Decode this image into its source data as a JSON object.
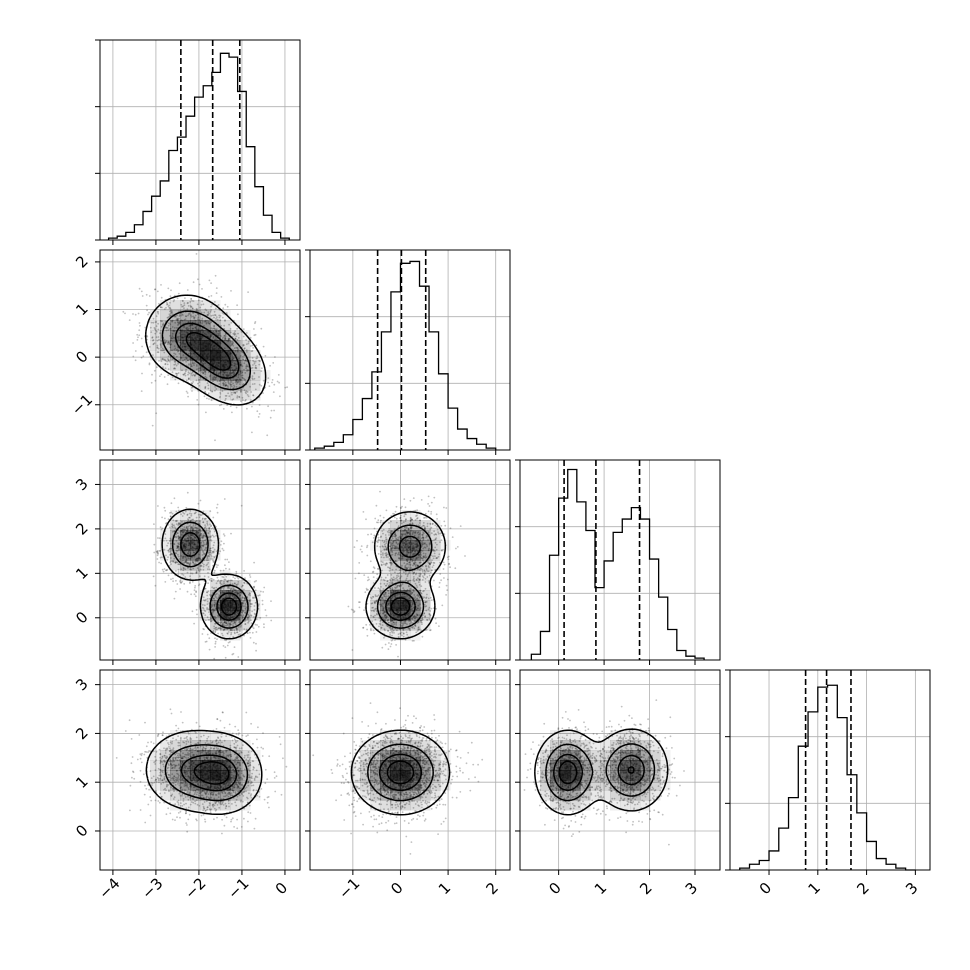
{
  "chart_data": {
    "type": "corner",
    "n_params": 4,
    "colors": {
      "line": "#000000",
      "grid": "#b0b0b0",
      "density": "#000000",
      "background": "#ffffff"
    },
    "grid": true,
    "quantiles": [
      0.16,
      0.5,
      0.84
    ],
    "levels": [
      0.12,
      0.39,
      0.68,
      0.86
    ],
    "params": [
      {
        "xlim": [
          -4.3,
          0.35
        ],
        "ticks": [
          -4,
          -3,
          -2,
          -1,
          0
        ],
        "tick_labels": [
          "−4",
          "−3",
          "−2",
          "−1",
          "0"
        ],
        "hist": {
          "bin_edges": [
            -4.1,
            -3.9,
            -3.7,
            -3.5,
            -3.3,
            -3.1,
            -2.9,
            -2.7,
            -2.5,
            -2.3,
            -2.1,
            -1.9,
            -1.7,
            -1.5,
            -1.3,
            -1.1,
            -0.9,
            -0.7,
            -0.5,
            -0.3,
            -0.1,
            0.1
          ],
          "counts": [
            0.01,
            0.02,
            0.04,
            0.08,
            0.15,
            0.23,
            0.31,
            0.47,
            0.54,
            0.65,
            0.75,
            0.81,
            0.88,
            0.98,
            0.96,
            0.78,
            0.49,
            0.28,
            0.13,
            0.04,
            0.01
          ]
        },
        "quantile_values": [
          -2.42,
          -1.68,
          -1.05
        ]
      },
      {
        "xlim": [
          -1.9,
          2.3
        ],
        "ticks": [
          -1,
          0,
          1,
          2
        ],
        "tick_labels": [
          "−1",
          "0",
          "1",
          "2"
        ],
        "hist": {
          "bin_edges": [
            -1.8,
            -1.6,
            -1.4,
            -1.2,
            -1.0,
            -0.8,
            -0.6,
            -0.4,
            -0.2,
            0.0,
            0.2,
            0.4,
            0.6,
            0.8,
            1.0,
            1.2,
            1.4,
            1.6,
            1.8,
            2.0
          ],
          "counts": [
            0.01,
            0.02,
            0.04,
            0.08,
            0.16,
            0.27,
            0.41,
            0.62,
            0.83,
            0.98,
            0.99,
            0.86,
            0.62,
            0.4,
            0.22,
            0.11,
            0.06,
            0.03,
            0.01
          ]
        },
        "quantile_values": [
          -0.48,
          0.02,
          0.53
        ]
      },
      {
        "xlim": [
          -0.85,
          3.55
        ],
        "ticks": [
          0,
          1,
          2,
          3
        ],
        "tick_labels": [
          "0",
          "1",
          "2",
          "3"
        ],
        "hist": {
          "bin_edges": [
            -0.6,
            -0.4,
            -0.2,
            0.0,
            0.2,
            0.4,
            0.6,
            0.8,
            1.0,
            1.2,
            1.4,
            1.6,
            1.8,
            2.0,
            2.2,
            2.4,
            2.6,
            2.8,
            3.0,
            3.2
          ],
          "counts": [
            0.03,
            0.15,
            0.55,
            0.85,
            1.0,
            0.83,
            0.68,
            0.38,
            0.52,
            0.67,
            0.74,
            0.8,
            0.74,
            0.53,
            0.33,
            0.16,
            0.05,
            0.02,
            0.01
          ]
        },
        "quantile_values": [
          0.12,
          0.82,
          1.78
        ]
      },
      {
        "xlim": [
          -0.8,
          3.3
        ],
        "ticks": [
          0,
          1,
          2,
          3
        ],
        "tick_labels": [
          "0",
          "1",
          "2",
          "3"
        ],
        "hist": {
          "bin_edges": [
            -0.6,
            -0.4,
            -0.2,
            0.0,
            0.2,
            0.4,
            0.6,
            0.8,
            1.0,
            1.2,
            1.4,
            1.6,
            1.8,
            2.0,
            2.2,
            2.4,
            2.6,
            2.8,
            3.0
          ],
          "counts": [
            0.01,
            0.03,
            0.05,
            0.1,
            0.22,
            0.38,
            0.65,
            0.83,
            0.96,
            0.97,
            0.8,
            0.5,
            0.3,
            0.15,
            0.06,
            0.03,
            0.01,
            0.0
          ]
        },
        "quantile_values": [
          0.75,
          1.18,
          1.68
        ]
      }
    ],
    "y_axes": [
      {
        "row": 1,
        "ylim": [
          -1.95,
          2.25
        ],
        "ticks": [
          -1,
          0,
          1,
          2
        ],
        "tick_labels": [
          "−1",
          "0",
          "1",
          "2"
        ]
      },
      {
        "row": 2,
        "ylim": [
          -0.95,
          3.55
        ],
        "ticks": [
          0,
          1,
          2,
          3
        ],
        "tick_labels": [
          "0",
          "1",
          "2",
          "3"
        ]
      },
      {
        "row": 3,
        "ylim": [
          -0.8,
          3.3
        ],
        "ticks": [
          0,
          1,
          2,
          3
        ],
        "tick_labels": [
          "0",
          "1",
          "2",
          "3"
        ]
      }
    ],
    "joint_components": [
      [
        {
          "weight": 0.55,
          "mean": [
            -1.45,
            -0.1
          ],
          "sd": [
            0.5,
            0.45
          ],
          "rho": -0.35
        },
        {
          "weight": 0.45,
          "mean": [
            -2.3,
            0.45
          ],
          "sd": [
            0.5,
            0.45
          ],
          "rho": 0.0
        }
      ],
      [
        {
          "weight": 0.5,
          "mean": [
            -1.3,
            0.25
          ],
          "sd": [
            0.32,
            0.35
          ],
          "rho": 0.0
        },
        {
          "weight": 0.5,
          "mean": [
            -2.2,
            1.65
          ],
          "sd": [
            0.33,
            0.4
          ],
          "rho": 0.0
        }
      ],
      [
        {
          "weight": 0.5,
          "mean": [
            0.0,
            0.25
          ],
          "sd": [
            0.35,
            0.35
          ],
          "rho": 0.0
        },
        {
          "weight": 0.5,
          "mean": [
            0.2,
            1.6
          ],
          "sd": [
            0.38,
            0.4
          ],
          "rho": 0.0
        }
      ],
      [
        {
          "weight": 0.45,
          "mean": [
            -1.4,
            1.15
          ],
          "sd": [
            0.45,
            0.4
          ],
          "rho": 0.0
        },
        {
          "weight": 0.55,
          "mean": [
            -2.2,
            1.25
          ],
          "sd": [
            0.55,
            0.42
          ],
          "rho": 0.0
        }
      ],
      [
        {
          "weight": 1.0,
          "mean": [
            0.0,
            1.2
          ],
          "sd": [
            0.5,
            0.42
          ],
          "rho": 0.0
        }
      ],
      [
        {
          "weight": 0.5,
          "mean": [
            0.2,
            1.2
          ],
          "sd": [
            0.35,
            0.42
          ],
          "rho": 0.0
        },
        {
          "weight": 0.5,
          "mean": [
            1.6,
            1.25
          ],
          "sd": [
            0.4,
            0.42
          ],
          "rho": 0.0
        }
      ]
    ]
  }
}
